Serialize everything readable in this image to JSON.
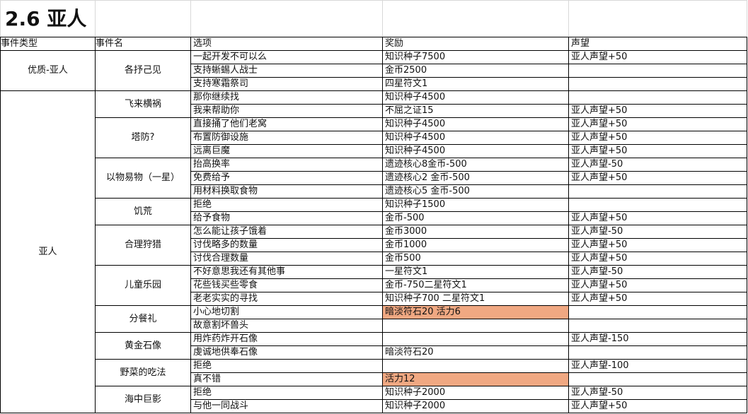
{
  "title": "2.6 亚人",
  "headers": [
    "事件类型",
    "事件名",
    "选项",
    "奖励",
    "声望"
  ],
  "highlight_color": "#f0a882",
  "groups": [
    {
      "type": "优质-亚人",
      "events": [
        {
          "name": "各抒己见",
          "options": [
            {
              "option": "一起开发不可以么",
              "reward": "知识种子7500",
              "reputation": "亚人声望+50"
            },
            {
              "option": "支持蜥蜴人战士",
              "reward": "金币2500",
              "reputation": ""
            },
            {
              "option": "支持寒霜祭司",
              "reward": "四星符文1",
              "reputation": ""
            }
          ]
        }
      ]
    },
    {
      "type": "亚人",
      "events": [
        {
          "name": "飞来横祸",
          "options": [
            {
              "option": "那你继续找",
              "reward": "知识种子4500",
              "reputation": ""
            },
            {
              "option": "我来帮助你",
              "reward": "不屈之证15",
              "reputation": "亚人声望+50"
            }
          ]
        },
        {
          "name": "塔防?",
          "options": [
            {
              "option": "直接捅了他们老窝",
              "reward": "知识种子4500",
              "reputation": "亚人声望+50"
            },
            {
              "option": "布置防御设施",
              "reward": "知识种子4500",
              "reputation": "亚人声望+50"
            },
            {
              "option": "远离巨魔",
              "reward": "知识种子4500",
              "reputation": "亚人声望+50"
            }
          ]
        },
        {
          "name": "以物易物（一星）",
          "options": [
            {
              "option": "抬高换率",
              "reward": "遗迹核心8金币-500",
              "reputation": "亚人声望-50"
            },
            {
              "option": "免费给予",
              "reward": "遗迹核心2 金币-500",
              "reputation": "亚人声望+50"
            },
            {
              "option": "用材料换取食物",
              "reward": "遗迹核心5 金币-500",
              "reputation": ""
            }
          ]
        },
        {
          "name": "饥荒",
          "options": [
            {
              "option": "拒绝",
              "reward": "知识种子1500",
              "reputation": ""
            },
            {
              "option": "给予食物",
              "reward": "金币-500",
              "reputation": "亚人声望+50"
            }
          ]
        },
        {
          "name": "合理狩猎",
          "options": [
            {
              "option": "怎么能让孩子饿着",
              "reward": "金币3000",
              "reputation": "亚人声望-50"
            },
            {
              "option": "讨伐略多的数量",
              "reward": "金币1000",
              "reputation": "亚人声望+50"
            },
            {
              "option": "讨伐合理数量",
              "reward": "金币500",
              "reputation": "亚人声望+50"
            }
          ]
        },
        {
          "name": "儿童乐园",
          "options": [
            {
              "option": "不好意思我还有其他事",
              "reward": "一星符文1",
              "reputation": "亚人声望-50"
            },
            {
              "option": "花些钱买些零食",
              "reward": "金币-750二星符文1",
              "reputation": "亚人声望+50"
            },
            {
              "option": "老老实实的寻找",
              "reward": "知识种子700 二星符文1",
              "reputation": "亚人声望+50"
            }
          ]
        },
        {
          "name": "分餐礼",
          "options": [
            {
              "option": "小心地切割",
              "reward": "暗淡符石20 活力6",
              "reputation": "",
              "highlight": true
            },
            {
              "option": "故意割坏兽头",
              "reward": "",
              "reputation": ""
            }
          ]
        },
        {
          "name": "黄金石像",
          "options": [
            {
              "option": "用炸药炸开石像",
              "reward": "",
              "reputation": "亚人声望-150"
            },
            {
              "option": "虔诚地供奉石像",
              "reward": "暗淡符石20",
              "reputation": ""
            }
          ]
        },
        {
          "name": "野菜的吃法",
          "options": [
            {
              "option": "拒绝",
              "reward": "",
              "reputation": "亚人声望-100"
            },
            {
              "option": "真不错",
              "reward": "活力12",
              "reputation": "",
              "highlight": true
            }
          ]
        },
        {
          "name": "海中巨影",
          "options": [
            {
              "option": "拒绝",
              "reward": "知识种子2000",
              "reputation": "亚人声望-50"
            },
            {
              "option": "与他一同战斗",
              "reward": "知识种子2000",
              "reputation": "亚人声望+50"
            }
          ]
        }
      ]
    }
  ]
}
